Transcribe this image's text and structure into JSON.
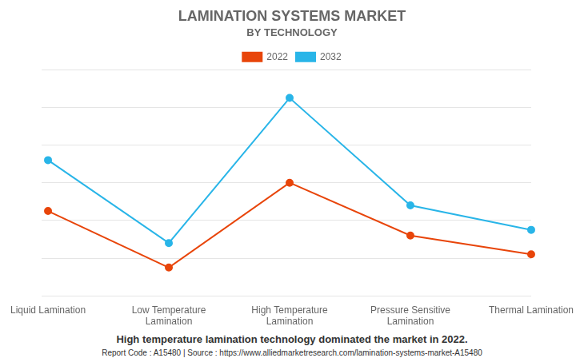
{
  "chart_data": {
    "type": "line",
    "title": "LAMINATION SYSTEMS MARKET",
    "subtitle": "BY TECHNOLOGY",
    "categories": [
      "Liquid Lamination",
      "Low Temperature\nLamination",
      "High Temperature\nLamination",
      "Pressure Sensitive\nLamination",
      "Thermal Lamination"
    ],
    "series": [
      {
        "name": "2022",
        "color": "#E8450A",
        "values": [
          4.5,
          1.5,
          6.0,
          3.2,
          2.2
        ]
      },
      {
        "name": "2032",
        "color": "#29B5E8",
        "values": [
          7.2,
          2.8,
          10.5,
          4.8,
          3.5
        ]
      }
    ],
    "ylim": [
      0,
      12
    ],
    "yticks": [
      0,
      2,
      4,
      6,
      8,
      10,
      12
    ],
    "grid": true,
    "legend": "top",
    "tick_labels": "x",
    "marker": "circle",
    "annotations": [
      "High temperature lamination technology dominated the market in 2022.",
      "Report Code : A15480  |  Source : https://www.alliedmarketresearch.com/lamination-systems-market-A15480"
    ]
  }
}
